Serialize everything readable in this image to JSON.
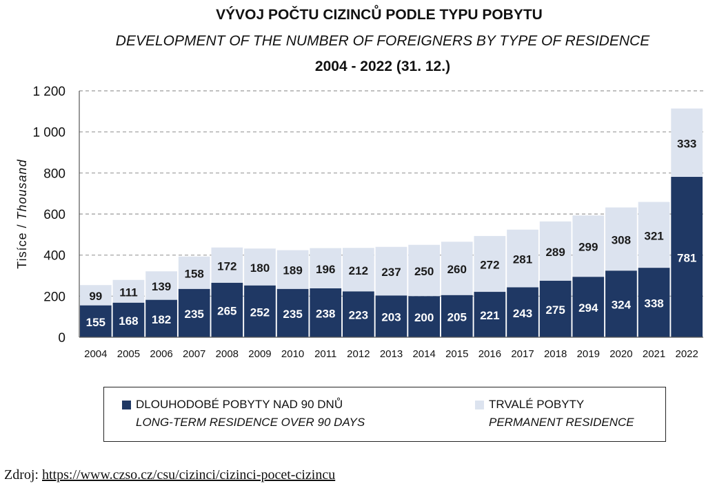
{
  "chart_data": {
    "type": "bar",
    "stacked": true,
    "title": "VÝVOJ POČTU CIZINCŮ PODLE TYPU POBYTU",
    "subtitle": "DEVELOPMENT OF THE NUMBER OF FOREIGNERS BY TYPE OF RESIDENCE",
    "period": "2004 - 2022 (31. 12.)",
    "ylabel": "Tisíce / Thousand",
    "xlabel": "",
    "ylim": [
      0,
      1200
    ],
    "yticks": [
      {
        "value": 0,
        "label": "0"
      },
      {
        "value": 200,
        "label": "200"
      },
      {
        "value": 400,
        "label": "400"
      },
      {
        "value": 600,
        "label": "600"
      },
      {
        "value": 800,
        "label": "800"
      },
      {
        "value": 1000,
        "label": "1 000"
      },
      {
        "value": 1200,
        "label": "1 200"
      }
    ],
    "grid": "horizontal dashed",
    "legend_position": "bottom",
    "categories": [
      "2004",
      "2005",
      "2006",
      "2007",
      "2008",
      "2009",
      "2010",
      "2011",
      "2012",
      "2013",
      "2014",
      "2015",
      "2016",
      "2017",
      "2018",
      "2019",
      "2020",
      "2021",
      "2022"
    ],
    "series": [
      {
        "name": "DLOUHODOBÉ POBYTY NAD 90 DNŮ",
        "name_en": "LONG-TERM RESIDENCE OVER 90 DAYS",
        "color": "#1f3864",
        "label_color": "#ffffff",
        "values": [
          155,
          168,
          182,
          235,
          265,
          252,
          235,
          238,
          223,
          203,
          200,
          205,
          221,
          243,
          275,
          294,
          324,
          338,
          781
        ]
      },
      {
        "name": "TRVALÉ POBYTY",
        "name_en": "PERMANENT RESIDENCE",
        "color": "#dce3ef",
        "label_color": "#1a1a1a",
        "values": [
          99,
          111,
          139,
          158,
          172,
          180,
          189,
          196,
          212,
          237,
          250,
          260,
          272,
          281,
          289,
          299,
          308,
          321,
          333
        ]
      }
    ]
  },
  "source": {
    "prefix": "Zdroj: ",
    "url_text": "https://www.czso.cz/csu/cizinci/cizinci-pocet-cizincu"
  }
}
